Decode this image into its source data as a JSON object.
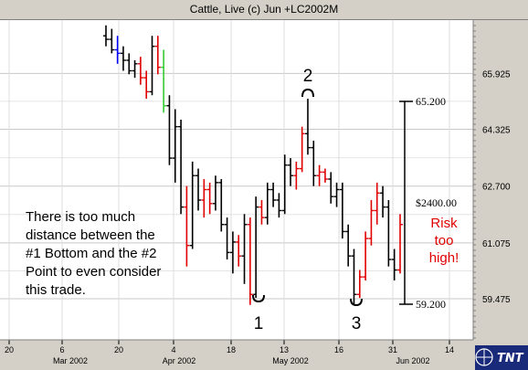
{
  "window": {
    "title": "Cattle, Live (c) Jun +LC2002M"
  },
  "logo": {
    "text": "TNT"
  },
  "chart_data": {
    "type": "ohlc",
    "y_ticks": [
      "65.925",
      "64.325",
      "62.700",
      "61.075",
      "59.475"
    ],
    "y_tick_values": [
      65.925,
      64.325,
      62.7,
      61.075,
      59.475
    ],
    "ylim": [
      58.3,
      67.45
    ],
    "x_ticks": [
      "20",
      "6",
      "20",
      "4",
      "18",
      "13",
      "16",
      "31",
      "14"
    ],
    "x_months": [
      "Mar 2002",
      "Apr 2002",
      "May 2002",
      "Jun 2002"
    ],
    "grid": true,
    "annotations": {
      "note_lines": [
        "There is too much",
        "distance between the",
        "#1 Bottom and the #2",
        "Point to even consider",
        "this trade."
      ],
      "risk_lines": [
        "Risk",
        "too",
        "high!"
      ],
      "point_labels": [
        "1",
        "2",
        "3"
      ],
      "range_top": "65.200",
      "range_bottom": "59.200",
      "range_value": "$2400.00"
    },
    "bars": [
      {
        "o": 67.0,
        "h": 67.3,
        "l": 66.7,
        "c": 66.9,
        "color": "black"
      },
      {
        "o": 66.9,
        "h": 67.2,
        "l": 66.5,
        "c": 66.6,
        "color": "black"
      },
      {
        "o": 66.6,
        "h": 67.0,
        "l": 66.2,
        "c": 66.5,
        "color": "blue"
      },
      {
        "o": 66.5,
        "h": 66.7,
        "l": 66.0,
        "c": 66.3,
        "color": "black"
      },
      {
        "o": 66.3,
        "h": 66.5,
        "l": 65.9,
        "c": 66.0,
        "color": "black"
      },
      {
        "o": 66.0,
        "h": 66.3,
        "l": 65.8,
        "c": 66.2,
        "color": "black"
      },
      {
        "o": 66.2,
        "h": 66.4,
        "l": 65.6,
        "c": 65.8,
        "color": "red"
      },
      {
        "o": 65.8,
        "h": 66.0,
        "l": 65.2,
        "c": 65.4,
        "color": "red"
      },
      {
        "o": 65.4,
        "h": 67.0,
        "l": 65.3,
        "c": 66.7,
        "color": "black"
      },
      {
        "o": 66.7,
        "h": 67.0,
        "l": 65.9,
        "c": 66.1,
        "color": "red"
      },
      {
        "o": 66.1,
        "h": 66.6,
        "l": 64.8,
        "c": 65.0,
        "color": "green"
      },
      {
        "o": 65.0,
        "h": 65.3,
        "l": 63.3,
        "c": 63.5,
        "color": "black"
      },
      {
        "o": 63.5,
        "h": 64.9,
        "l": 62.8,
        "c": 64.4,
        "color": "black"
      },
      {
        "o": 64.4,
        "h": 64.6,
        "l": 61.9,
        "c": 62.1,
        "color": "black"
      },
      {
        "o": 62.1,
        "h": 62.7,
        "l": 60.4,
        "c": 61.0,
        "color": "red"
      },
      {
        "o": 61.0,
        "h": 63.4,
        "l": 60.9,
        "c": 63.0,
        "color": "black"
      },
      {
        "o": 63.0,
        "h": 63.2,
        "l": 62.0,
        "c": 62.3,
        "color": "black"
      },
      {
        "o": 62.3,
        "h": 62.9,
        "l": 61.8,
        "c": 62.6,
        "color": "red"
      },
      {
        "o": 62.6,
        "h": 62.8,
        "l": 61.9,
        "c": 62.2,
        "color": "red"
      },
      {
        "o": 62.2,
        "h": 63.0,
        "l": 62.0,
        "c": 62.8,
        "color": "black"
      },
      {
        "o": 62.8,
        "h": 62.9,
        "l": 61.4,
        "c": 61.6,
        "color": "black"
      },
      {
        "o": 61.6,
        "h": 61.8,
        "l": 60.6,
        "c": 60.8,
        "color": "black"
      },
      {
        "o": 60.8,
        "h": 61.4,
        "l": 60.2,
        "c": 61.1,
        "color": "black"
      },
      {
        "o": 61.1,
        "h": 61.3,
        "l": 60.4,
        "c": 60.7,
        "color": "red"
      },
      {
        "o": 60.7,
        "h": 61.9,
        "l": 59.9,
        "c": 61.6,
        "color": "black"
      },
      {
        "o": 61.6,
        "h": 61.8,
        "l": 59.3,
        "c": 59.6,
        "color": "red"
      },
      {
        "o": 59.6,
        "h": 62.4,
        "l": 59.5,
        "c": 62.1,
        "color": "black"
      },
      {
        "o": 62.1,
        "h": 62.3,
        "l": 61.6,
        "c": 61.8,
        "color": "red"
      },
      {
        "o": 61.8,
        "h": 62.8,
        "l": 61.6,
        "c": 62.6,
        "color": "black"
      },
      {
        "o": 62.6,
        "h": 62.8,
        "l": 62.1,
        "c": 62.3,
        "color": "black"
      },
      {
        "o": 62.3,
        "h": 62.5,
        "l": 61.8,
        "c": 62.0,
        "color": "black"
      },
      {
        "o": 62.0,
        "h": 63.6,
        "l": 61.9,
        "c": 63.3,
        "color": "black"
      },
      {
        "o": 63.3,
        "h": 63.5,
        "l": 62.7,
        "c": 63.0,
        "color": "black"
      },
      {
        "o": 63.0,
        "h": 63.4,
        "l": 62.6,
        "c": 63.2,
        "color": "red"
      },
      {
        "o": 63.2,
        "h": 64.4,
        "l": 63.1,
        "c": 64.2,
        "color": "red"
      },
      {
        "o": 64.2,
        "h": 65.2,
        "l": 63.6,
        "c": 63.8,
        "color": "black"
      },
      {
        "o": 63.8,
        "h": 64.0,
        "l": 62.7,
        "c": 63.0,
        "color": "black"
      },
      {
        "o": 63.0,
        "h": 63.3,
        "l": 62.7,
        "c": 63.1,
        "color": "red"
      },
      {
        "o": 63.1,
        "h": 63.2,
        "l": 62.8,
        "c": 62.9,
        "color": "red"
      },
      {
        "o": 62.9,
        "h": 63.1,
        "l": 62.2,
        "c": 62.4,
        "color": "black"
      },
      {
        "o": 62.4,
        "h": 62.8,
        "l": 62.1,
        "c": 62.6,
        "color": "black"
      },
      {
        "o": 62.6,
        "h": 62.8,
        "l": 61.2,
        "c": 61.4,
        "color": "black"
      },
      {
        "o": 61.4,
        "h": 61.6,
        "l": 60.4,
        "c": 60.7,
        "color": "black"
      },
      {
        "o": 60.7,
        "h": 60.9,
        "l": 59.3,
        "c": 59.6,
        "color": "black"
      },
      {
        "o": 59.6,
        "h": 60.3,
        "l": 59.5,
        "c": 60.1,
        "color": "red"
      },
      {
        "o": 60.1,
        "h": 61.4,
        "l": 60.0,
        "c": 61.2,
        "color": "red"
      },
      {
        "o": 61.2,
        "h": 62.3,
        "l": 61.0,
        "c": 62.0,
        "color": "red"
      },
      {
        "o": 62.0,
        "h": 62.8,
        "l": 61.6,
        "c": 62.5,
        "color": "red"
      },
      {
        "o": 62.5,
        "h": 62.7,
        "l": 61.8,
        "c": 62.1,
        "color": "black"
      },
      {
        "o": 62.1,
        "h": 62.3,
        "l": 60.4,
        "c": 60.6,
        "color": "black"
      },
      {
        "o": 60.6,
        "h": 60.9,
        "l": 60.0,
        "c": 60.3,
        "color": "black"
      },
      {
        "o": 60.3,
        "h": 61.9,
        "l": 60.2,
        "c": 61.6,
        "color": "red"
      }
    ]
  }
}
